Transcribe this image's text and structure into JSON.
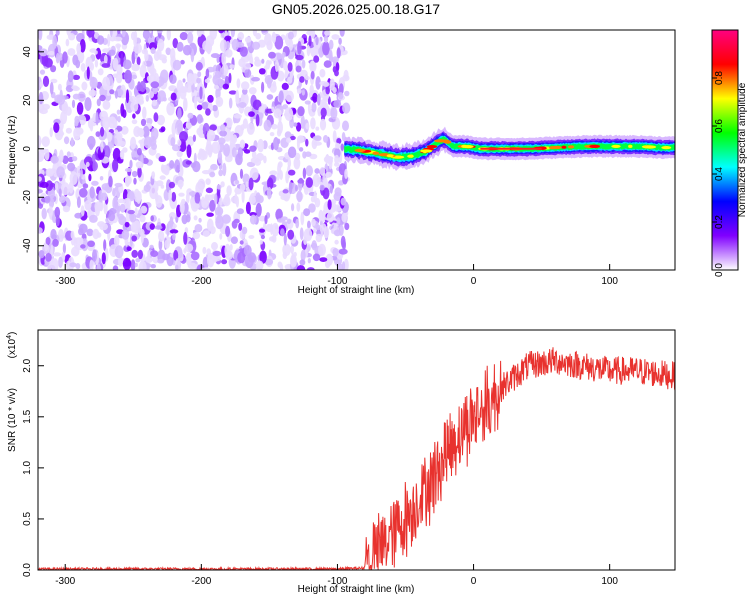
{
  "title": "GN05.2026.025.00.18.G17",
  "chart_data": [
    {
      "type": "heatmap",
      "xlabel": "Height of straight line (km)",
      "ylabel": "Frequency (Hz)",
      "xlim": [
        -320,
        148
      ],
      "ylim": [
        -50,
        49
      ],
      "xticks": [
        -300,
        -200,
        -100,
        0,
        100
      ],
      "yticks": [
        -40,
        -20,
        0,
        20,
        40
      ],
      "grid": false,
      "noise_region_x": [
        -320,
        -93
      ],
      "signal_track": {
        "x": [
          -95,
          -85,
          -75,
          -65,
          -55,
          -45,
          -35,
          -28,
          -22,
          -15,
          -5,
          5,
          20,
          40,
          60,
          80,
          100,
          120,
          140
        ],
        "frequency": [
          0,
          -0.5,
          -1.5,
          -2.5,
          -3.5,
          -3,
          -1,
          2,
          4,
          1,
          1,
          0,
          0,
          0,
          0.5,
          1,
          1,
          1,
          0.5
        ]
      },
      "colorbar": {
        "label": "Normalized spectral amplitude",
        "range": [
          0,
          1
        ],
        "ticks": [
          "0.0",
          "0.2",
          "0.4",
          "0.6",
          "0.8"
        ],
        "colors": [
          "#ffffff",
          "#8000ff",
          "#0000ff",
          "#00ffff",
          "#00ff00",
          "#ffff00",
          "#ff0000",
          "#ff0080"
        ]
      }
    },
    {
      "type": "line",
      "xlabel": "Height of straight line (km)",
      "ylabel": "SNR (10 * v/v)",
      "yscale_label": "(x10",
      "yscale_exponent": "4",
      "xlim": [
        -320,
        148
      ],
      "ylim": [
        0,
        2.35
      ],
      "xticks": [
        -300,
        -200,
        -100,
        0,
        100
      ],
      "yticks": [
        "0.0",
        "0.5",
        "1.0",
        "1.5",
        "2.0"
      ],
      "ytick_values": [
        0,
        0.5,
        1.0,
        1.5,
        2.0
      ],
      "grid": false,
      "series": [
        {
          "color": "#e8322e",
          "x": [
            -320,
            -100,
            -80,
            -70,
            -60,
            -50,
            -40,
            -30,
            -20,
            -10,
            0,
            10,
            20,
            40,
            60,
            80,
            100,
            120,
            148
          ],
          "y": [
            0.01,
            0.01,
            0.02,
            0.2,
            0.35,
            0.5,
            0.7,
            0.9,
            1.15,
            1.35,
            1.5,
            1.6,
            1.78,
            2.0,
            2.05,
            2.0,
            1.95,
            1.95,
            1.9
          ]
        }
      ]
    }
  ]
}
